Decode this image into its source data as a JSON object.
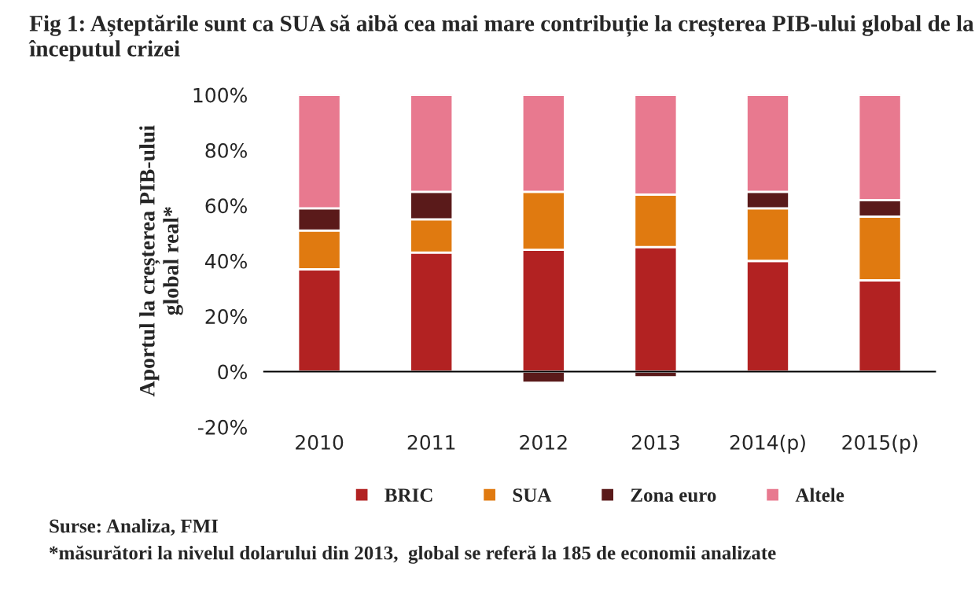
{
  "chart_data": {
    "type": "bar",
    "stacked": true,
    "title": "Fig 1: Așteptările sunt ca SUA să aibă cea mai mare contribuție la creșterea PIB-ului global de la începutul crizei",
    "ylabel": "Aportul la creșterea PIB-ului\nglobal real*",
    "categories": [
      "2010",
      "2011",
      "2012",
      "2013",
      "2014(p)",
      "2015(p)"
    ],
    "series": [
      {
        "name": "BRIC",
        "color": "#b22222",
        "values": [
          37,
          43,
          44,
          45,
          40,
          33
        ]
      },
      {
        "name": "SUA",
        "color": "#e07a10",
        "values": [
          14,
          12,
          21,
          19,
          19,
          23
        ]
      },
      {
        "name": "Zona euro",
        "color": "#5a1a1a",
        "values": [
          8,
          10,
          -4,
          -2,
          6,
          6
        ]
      },
      {
        "name": "Altele",
        "color": "#e8798f",
        "values": [
          41,
          35,
          35,
          36,
          35,
          38
        ]
      }
    ],
    "ylim": [
      -20,
      100
    ],
    "yticks": [
      {
        "value": -20,
        "label": "-20%"
      },
      {
        "value": 0,
        "label": "0%"
      },
      {
        "value": 20,
        "label": "20%"
      },
      {
        "value": 40,
        "label": "40%"
      },
      {
        "value": 60,
        "label": "60%"
      },
      {
        "value": 80,
        "label": "80%"
      },
      {
        "value": 100,
        "label": "100%"
      }
    ],
    "legend": "bottom",
    "annotations": [
      "Surse: Analiza, FMI",
      "*măsurători la nivelul dolarului din 2013,  global se referă la 185 de economii analizate"
    ]
  }
}
